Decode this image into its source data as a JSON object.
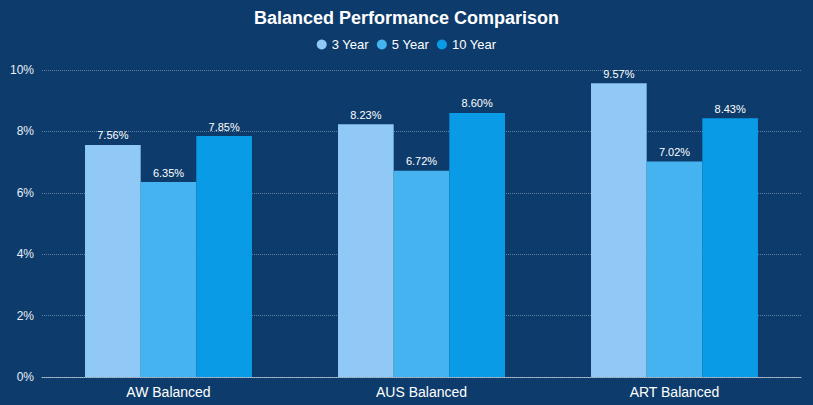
{
  "chart_data": {
    "type": "bar",
    "title": "Balanced Performance Comparison",
    "categories": [
      "AW Balanced",
      "AUS Balanced",
      "ART Balanced"
    ],
    "series": [
      {
        "name": "3 Year",
        "color": "#90c9f6",
        "values": [
          7.56,
          8.23,
          9.57
        ],
        "value_labels": [
          "7.56%",
          "8.23%",
          "9.57%"
        ]
      },
      {
        "name": "5 Year",
        "color": "#45b3f0",
        "values": [
          6.35,
          6.72,
          7.02
        ],
        "value_labels": [
          "6.35%",
          "6.72%",
          "7.02%"
        ]
      },
      {
        "name": "10 Year",
        "color": "#0a9be6",
        "values": [
          7.85,
          8.6,
          8.43
        ],
        "value_labels": [
          "7.85%",
          "8.60%",
          "8.43%"
        ]
      }
    ],
    "ylim": [
      0,
      10
    ],
    "yticks": [
      {
        "value": 0,
        "label": "0%"
      },
      {
        "value": 2,
        "label": "2%"
      },
      {
        "value": 4,
        "label": "4%"
      },
      {
        "value": 6,
        "label": "6%"
      },
      {
        "value": 8,
        "label": "8%"
      },
      {
        "value": 10,
        "label": "10%"
      }
    ],
    "grid": true,
    "legend": "top",
    "data_labels": true
  }
}
